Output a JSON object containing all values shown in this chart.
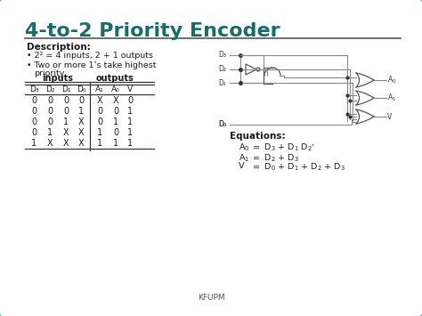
{
  "title": "4-to-2 Priority Encoder",
  "title_color": "#1a6b6b",
  "bg_color": "#f0f0f0",
  "border_color": "#7ab3b3",
  "description_header": "Description:",
  "bullet1": "2² = 4 inputs, 2 + 1 outputs",
  "bullet2_l1": "Two or more 1’s take highest",
  "bullet2_l2": "priority",
  "table_rows": [
    [
      "0",
      "0",
      "0",
      "0",
      "X",
      "X",
      "0"
    ],
    [
      "0",
      "0",
      "0",
      "1",
      "0",
      "0",
      "1"
    ],
    [
      "0",
      "0",
      "1",
      "X",
      "0",
      "1",
      "1"
    ],
    [
      "0",
      "1",
      "X",
      "X",
      "1",
      "0",
      "1"
    ],
    [
      "1",
      "X",
      "X",
      "X",
      "1",
      "1",
      "1"
    ]
  ],
  "equations_header": "Equations:",
  "footer": "KFUPM",
  "text_color": "#1a1a1a",
  "gate_color": "#555555",
  "wire_color": "#888888"
}
